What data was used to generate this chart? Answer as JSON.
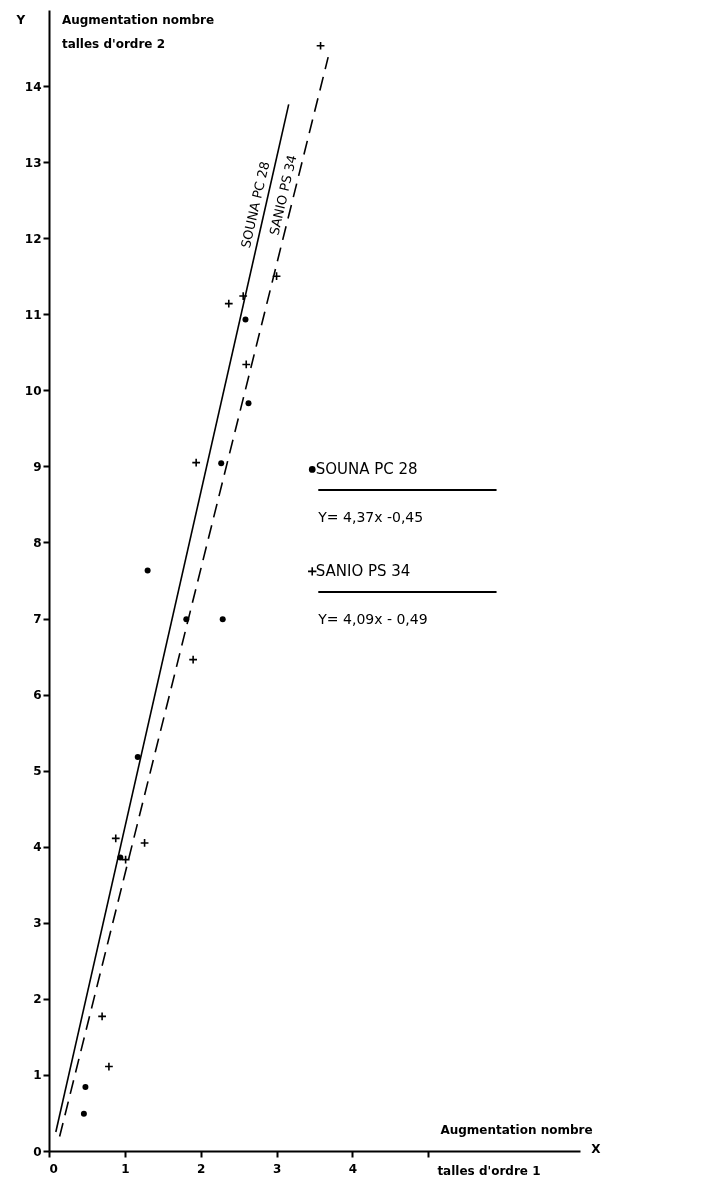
{
  "chart_data": {
    "type": "scatter",
    "xlabel": "Augmentation nombre talles d'ordre 1",
    "ylabel": "Augmentation nombre talles d'ordre 2",
    "xlim": [
      0,
      7
    ],
    "ylim": [
      0,
      15
    ],
    "xticks": [
      0,
      1,
      2,
      3,
      4,
      {
        "value": 5,
        "label": null
      }
    ],
    "yticks": [
      0,
      1,
      2,
      3,
      4,
      5,
      6,
      7,
      8,
      9,
      10,
      11,
      12,
      13,
      14
    ],
    "grid": false,
    "legend": "right",
    "annotations": [
      "Y",
      "X",
      "Y= 4,37x -0,45",
      "Y= 4,09x - 0,49"
    ],
    "series": [
      {
        "name": "SOUNA PC 28",
        "type": "scatter",
        "marker": "circle",
        "color": "#000000",
        "x": [
          0.48,
          0.46,
          1.3,
          1.81,
          2.29,
          1.17,
          0.94,
          2.59,
          2.63,
          2.27
        ],
        "values": [
          0.84,
          0.49,
          7.63,
          6.99,
          6.99,
          5.18,
          3.86,
          10.93,
          9.83,
          9.04
        ]
      },
      {
        "name": "SANIO PS 34",
        "type": "scatter",
        "marker": "cross",
        "color": "#000000",
        "x": [
          0.7,
          0.79,
          1.9,
          0.88,
          1.26,
          1.01,
          3.58,
          3.0,
          2.37,
          2.56,
          2.6,
          1.94
        ],
        "values": [
          1.77,
          1.11,
          6.46,
          4.11,
          4.05,
          3.83,
          14.53,
          11.5,
          11.14,
          11.24,
          10.34,
          9.05
        ]
      },
      {
        "name": "SOUNA PC 28",
        "type": "line",
        "line_style": "solid",
        "color": "#000000",
        "x": [
          0.09,
          3.16
        ],
        "values": [
          0.25,
          13.76
        ]
      },
      {
        "name": "SANIO PS 34",
        "type": "line",
        "line_style": "dashed",
        "color": "#000000",
        "x": [
          0.14,
          3.68
        ],
        "values": [
          0.19,
          14.38
        ]
      }
    ]
  }
}
